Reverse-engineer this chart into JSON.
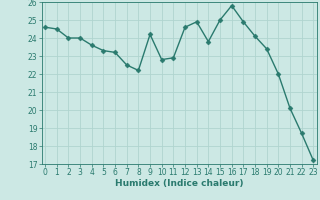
{
  "x": [
    0,
    1,
    2,
    3,
    4,
    5,
    6,
    7,
    8,
    9,
    10,
    11,
    12,
    13,
    14,
    15,
    16,
    17,
    18,
    19,
    20,
    21,
    22,
    23
  ],
  "y": [
    24.6,
    24.5,
    24.0,
    24.0,
    23.6,
    23.3,
    23.2,
    22.5,
    22.2,
    24.2,
    22.8,
    22.9,
    24.6,
    24.9,
    23.8,
    25.0,
    25.8,
    24.9,
    24.1,
    23.4,
    22.0,
    20.1,
    18.7,
    17.2
  ],
  "line_color": "#2a7a6e",
  "marker": "D",
  "marker_size": 2.5,
  "bg_color": "#cce8e4",
  "grid_color": "#b0d4cf",
  "xlabel": "Humidex (Indice chaleur)",
  "ylim": [
    17,
    26
  ],
  "xlim": [
    -0.3,
    23.3
  ],
  "yticks": [
    17,
    18,
    19,
    20,
    21,
    22,
    23,
    24,
    25,
    26
  ],
  "xticks": [
    0,
    1,
    2,
    3,
    4,
    5,
    6,
    7,
    8,
    9,
    10,
    11,
    12,
    13,
    14,
    15,
    16,
    17,
    18,
    19,
    20,
    21,
    22,
    23
  ],
  "tick_label_fontsize": 5.5,
  "xlabel_fontsize": 6.5,
  "line_width": 1.0,
  "axis_color": "#2a7a6e",
  "tick_color": "#2a7a6e"
}
